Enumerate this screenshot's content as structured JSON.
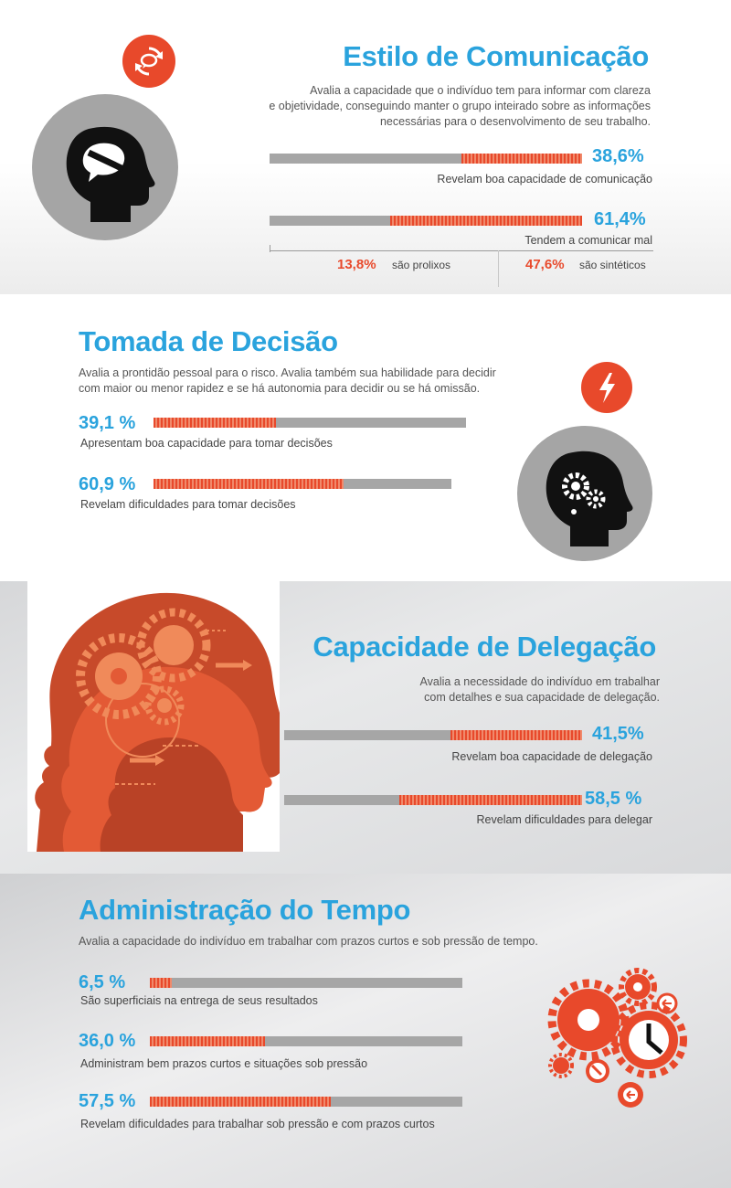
{
  "communication": {
    "title": "Estilo de Comunicação",
    "description_lines": [
      "Avalia a capacidade que o indivíduo tem para informar com clareza",
      "e objetividade, conseguindo manter o grupo inteirado sobre as informações",
      "necessárias para o desenvolvimento de seu trabalho."
    ],
    "stats": [
      {
        "value": "38,6%",
        "label": "Revelam boa capacidade de comunicação",
        "fraction": 0.386
      },
      {
        "value": "61,4%",
        "label": "Tendem a comunicar mal",
        "fraction": 0.614
      }
    ],
    "breakdown": [
      {
        "value": "13,8%",
        "label": "são prolixos"
      },
      {
        "value": "47,6%",
        "label": "são sintéticos"
      }
    ],
    "icon": "speech-bubble-head-icon"
  },
  "decision": {
    "title": "Tomada de Decisão",
    "description_lines": [
      "Avalia a prontidão pessoal para o risco. Avalia também sua habilidade para decidir",
      "com maior ou menor rapidez e se há autonomia para decidir ou se há omissão."
    ],
    "stats": [
      {
        "value": "39,1 %",
        "label": "Apresentam boa capacidade para tomar decisões",
        "fraction": 0.391
      },
      {
        "value": "60,9 %",
        "label": "Revelam dificuldades para tomar decisões",
        "fraction": 0.609
      }
    ],
    "icon": "gears-head-icon"
  },
  "delegation": {
    "title": "Capacidade de Delegação",
    "description_lines": [
      "Avalia a necessidade do indivíduo em trabalhar",
      "com detalhes e sua capacidade de delegação."
    ],
    "stats": [
      {
        "value": "41,5%",
        "label": "Revelam boa capacidade de delegação",
        "fraction": 0.415
      },
      {
        "value": "58,5 %",
        "label": "Revelam dificuldades para delegar",
        "fraction": 0.585
      }
    ],
    "icon": "orange-heads-gears-icon"
  },
  "time": {
    "title": "Administração do Tempo",
    "description": "Avalia a capacidade do indivíduo em trabalhar com prazos curtos e sob pressão de tempo.",
    "stats": [
      {
        "value": "6,5 %",
        "label": "São superficiais na entrega de seus resultados",
        "fraction": 0.065
      },
      {
        "value": "36,0 %",
        "label": "Administram bem prazos curtos e situações sob pressão",
        "fraction": 0.36
      },
      {
        "value": "57,5 %",
        "label": "Revelam dificuldades para trabalhar sob pressão e com prazos curtos",
        "fraction": 0.575
      }
    ],
    "icon": "gears-clock-icon"
  },
  "colors": {
    "accent_blue": "#2aa3dd",
    "accent_red": "#e8492b",
    "bar_gray": "#a6a6a6"
  }
}
